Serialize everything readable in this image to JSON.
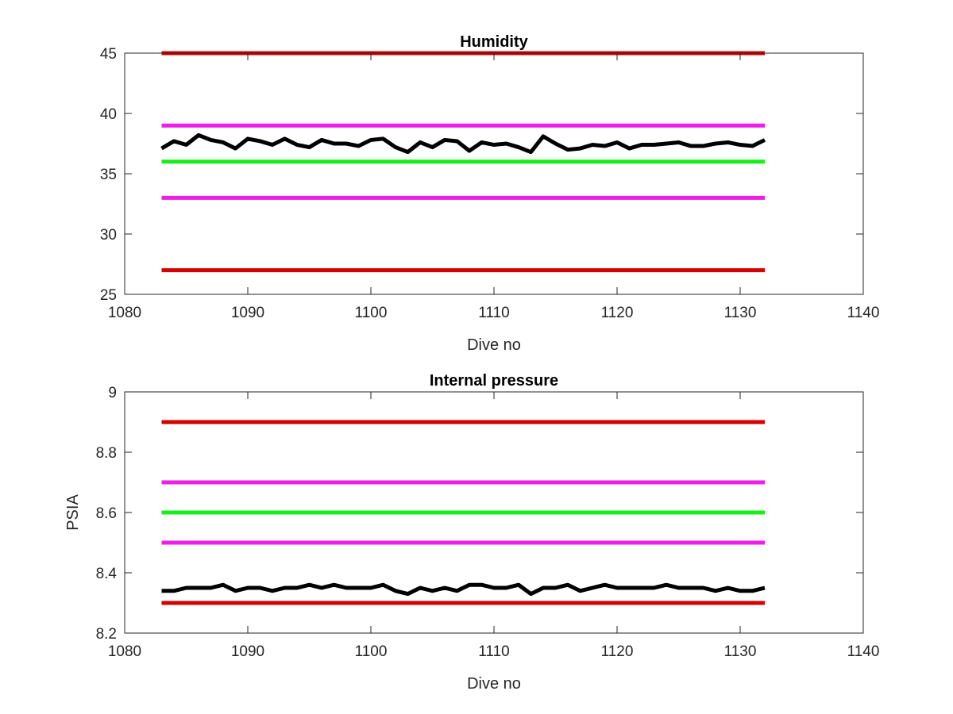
{
  "chart_data": [
    {
      "type": "line",
      "title": "Humidity",
      "xlabel": "Dive no",
      "ylabel": "",
      "xlim": [
        1080,
        1140
      ],
      "ylim": [
        25,
        45
      ],
      "xticks": [
        "1080",
        "1090",
        "1100",
        "1110",
        "1120",
        "1130",
        "1140"
      ],
      "yticks": [
        "25",
        "30",
        "35",
        "40",
        "45"
      ],
      "grid": false,
      "series": [
        {
          "color": "#d40000",
          "x": [
            1083,
            1132
          ],
          "y": [
            45,
            45
          ]
        },
        {
          "color": "#ee1de8",
          "x": [
            1083,
            1132
          ],
          "y": [
            39,
            39
          ]
        },
        {
          "color": "#1aee1a",
          "x": [
            1083,
            1132
          ],
          "y": [
            36,
            36
          ]
        },
        {
          "color": "#ee1de8",
          "x": [
            1083,
            1132
          ],
          "y": [
            33,
            33
          ]
        },
        {
          "color": "#d40000",
          "x": [
            1083,
            1132
          ],
          "y": [
            27,
            27
          ]
        },
        {
          "color": "#000000",
          "x": [
            1083,
            1084,
            1085,
            1086,
            1087,
            1088,
            1089,
            1090,
            1091,
            1092,
            1093,
            1094,
            1095,
            1096,
            1097,
            1098,
            1099,
            1100,
            1101,
            1102,
            1103,
            1104,
            1105,
            1106,
            1107,
            1108,
            1109,
            1110,
            1111,
            1112,
            1113,
            1114,
            1115,
            1116,
            1117,
            1118,
            1119,
            1120,
            1121,
            1122,
            1123,
            1124,
            1125,
            1126,
            1127,
            1128,
            1129,
            1130,
            1131,
            1132
          ],
          "y": [
            37.1,
            37.7,
            37.4,
            38.2,
            37.8,
            37.6,
            37.1,
            37.9,
            37.7,
            37.4,
            37.9,
            37.4,
            37.2,
            37.8,
            37.5,
            37.5,
            37.3,
            37.8,
            37.9,
            37.2,
            36.8,
            37.6,
            37.2,
            37.8,
            37.7,
            36.9,
            37.6,
            37.4,
            37.5,
            37.2,
            36.8,
            38.1,
            37.5,
            37.0,
            37.1,
            37.4,
            37.3,
            37.6,
            37.1,
            37.4,
            37.4,
            37.5,
            37.6,
            37.3,
            37.3,
            37.5,
            37.6,
            37.4,
            37.3,
            37.8
          ]
        }
      ]
    },
    {
      "type": "line",
      "title": "Internal pressure",
      "xlabel": "Dive no",
      "ylabel": "PSIA",
      "xlim": [
        1080,
        1140
      ],
      "ylim": [
        8.2,
        9
      ],
      "xticks": [
        "1080",
        "1090",
        "1100",
        "1110",
        "1120",
        "1130",
        "1140"
      ],
      "yticks": [
        "8.2",
        "8.4",
        "8.6",
        "8.8",
        "9"
      ],
      "grid": false,
      "series": [
        {
          "color": "#d40000",
          "x": [
            1083,
            1132
          ],
          "y": [
            8.9,
            8.9
          ]
        },
        {
          "color": "#ee1de8",
          "x": [
            1083,
            1132
          ],
          "y": [
            8.7,
            8.7
          ]
        },
        {
          "color": "#1aee1a",
          "x": [
            1083,
            1132
          ],
          "y": [
            8.6,
            8.6
          ]
        },
        {
          "color": "#ee1de8",
          "x": [
            1083,
            1132
          ],
          "y": [
            8.5,
            8.5
          ]
        },
        {
          "color": "#d40000",
          "x": [
            1083,
            1132
          ],
          "y": [
            8.3,
            8.3
          ]
        },
        {
          "color": "#000000",
          "x": [
            1083,
            1084,
            1085,
            1086,
            1087,
            1088,
            1089,
            1090,
            1091,
            1092,
            1093,
            1094,
            1095,
            1096,
            1097,
            1098,
            1099,
            1100,
            1101,
            1102,
            1103,
            1104,
            1105,
            1106,
            1107,
            1108,
            1109,
            1110,
            1111,
            1112,
            1113,
            1114,
            1115,
            1116,
            1117,
            1118,
            1119,
            1120,
            1121,
            1122,
            1123,
            1124,
            1125,
            1126,
            1127,
            1128,
            1129,
            1130,
            1131,
            1132
          ],
          "y": [
            8.34,
            8.34,
            8.35,
            8.35,
            8.35,
            8.36,
            8.34,
            8.35,
            8.35,
            8.34,
            8.35,
            8.35,
            8.36,
            8.35,
            8.36,
            8.35,
            8.35,
            8.35,
            8.36,
            8.34,
            8.33,
            8.35,
            8.34,
            8.35,
            8.34,
            8.36,
            8.36,
            8.35,
            8.35,
            8.36,
            8.33,
            8.35,
            8.35,
            8.36,
            8.34,
            8.35,
            8.36,
            8.35,
            8.35,
            8.35,
            8.35,
            8.36,
            8.35,
            8.35,
            8.35,
            8.34,
            8.35,
            8.34,
            8.34,
            8.35
          ]
        }
      ]
    }
  ]
}
